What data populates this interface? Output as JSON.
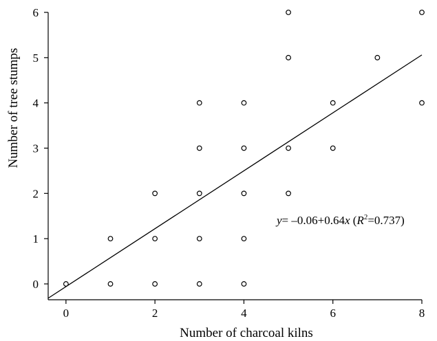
{
  "chart_data": {
    "type": "scatter",
    "title": "",
    "xlabel": "Number of charcoal kilns",
    "ylabel": "Number of tree stumps",
    "xlim": [
      -0.4,
      8
    ],
    "ylim": [
      -0.35,
      6
    ],
    "x_ticks": [
      0,
      2,
      4,
      6,
      8
    ],
    "y_ticks": [
      0,
      1,
      2,
      3,
      4,
      5,
      6
    ],
    "grid": false,
    "points": [
      {
        "x": 0,
        "y": 0
      },
      {
        "x": 1,
        "y": 0
      },
      {
        "x": 1,
        "y": 1
      },
      {
        "x": 2,
        "y": 0
      },
      {
        "x": 2,
        "y": 1
      },
      {
        "x": 2,
        "y": 2
      },
      {
        "x": 3,
        "y": 0
      },
      {
        "x": 3,
        "y": 1
      },
      {
        "x": 3,
        "y": 2
      },
      {
        "x": 3,
        "y": 3
      },
      {
        "x": 3,
        "y": 4
      },
      {
        "x": 4,
        "y": 0
      },
      {
        "x": 4,
        "y": 1
      },
      {
        "x": 4,
        "y": 2
      },
      {
        "x": 4,
        "y": 3
      },
      {
        "x": 4,
        "y": 4
      },
      {
        "x": 5,
        "y": 2
      },
      {
        "x": 5,
        "y": 3
      },
      {
        "x": 5,
        "y": 5
      },
      {
        "x": 5,
        "y": 6
      },
      {
        "x": 6,
        "y": 3
      },
      {
        "x": 6,
        "y": 4
      },
      {
        "x": 7,
        "y": 5
      },
      {
        "x": 8,
        "y": 4
      },
      {
        "x": 8,
        "y": 6
      }
    ],
    "fit": {
      "intercept": -0.06,
      "slope": 0.64,
      "r2": 0.737
    },
    "annotation": {
      "y_var": "y",
      "equation_mid": "= –0.06+0.64",
      "x_var": "x",
      "open": " (",
      "r_var": "R",
      "sup": "2",
      "r2_value": "=0.737)"
    }
  }
}
